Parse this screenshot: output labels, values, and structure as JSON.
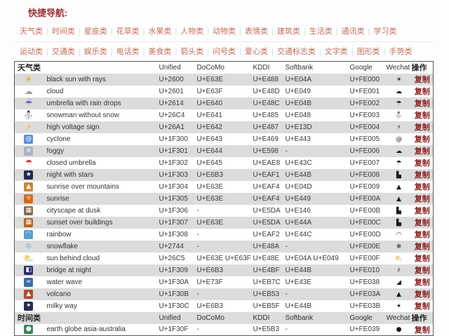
{
  "page": {
    "quick_nav_label": "快捷导航:"
  },
  "nav": {
    "row1": [
      "天气类",
      "时间类",
      "星座类",
      "花草类",
      "水果类",
      "人物类",
      "动物类",
      "表情类",
      "建筑类",
      "生活类",
      "通讯类",
      "学习类"
    ],
    "row2": [
      "运动类",
      "交通类",
      "娱乐类",
      "电话类",
      "美食类",
      "箭头类",
      "问号类",
      "爱心类",
      "交通标志类",
      "文字类",
      "图形类",
      "手势类"
    ]
  },
  "table": {
    "columns": [
      "Unified",
      "DoCoMo",
      "KDDI",
      "Softbank",
      "Google",
      "Wechat"
    ],
    "action_column": "操作",
    "copy_label": "复制",
    "sections": [
      {
        "category": "天气类",
        "rows": [
          {
            "icon": "☀",
            "icon_name": "sun-icon",
            "tile": false,
            "color": "#f0a400",
            "name": "black sun with rays",
            "unified": "U+2600",
            "docomo": "U+E63E",
            "kddi": "U+E488",
            "softbank": "U+E04A",
            "google": "U+FE000",
            "wechat": "☀"
          },
          {
            "icon": "☁",
            "icon_name": "cloud-icon",
            "tile": false,
            "color": "#9aa4ad",
            "name": "cloud",
            "unified": "U+2601",
            "docomo": "U+E63F",
            "kddi": "U+E48D",
            "softbank": "U+E049",
            "google": "U+FE001",
            "wechat": "☁"
          },
          {
            "icon": "☔",
            "icon_name": "umbrella-rain-icon",
            "tile": false,
            "color": "#6a5acd",
            "name": "umbrella with rain drops",
            "unified": "U+2614",
            "docomo": "U+E640",
            "kddi": "U+E48C",
            "softbank": "U+E04B",
            "google": "U+FE002",
            "wechat": "☂"
          },
          {
            "icon": "⛄",
            "icon_name": "snowman-icon",
            "tile": false,
            "color": "#8d9aa5",
            "name": "snowman without snow",
            "unified": "U+26C4",
            "docomo": "U+E641",
            "kddi": "U+E485",
            "softbank": "U+E048",
            "google": "U+FE003",
            "wechat": "⛄"
          },
          {
            "icon": "⚡",
            "icon_name": "lightning-icon",
            "tile": false,
            "color": "#f2c011",
            "name": "high voltage sign",
            "unified": "U+26A1",
            "docomo": "U+E642",
            "kddi": "U+E487",
            "softbank": "U+E13D",
            "google": "U+FE004",
            "wechat": "⚡"
          },
          {
            "icon": "@",
            "icon_name": "cyclone-icon",
            "tile": true,
            "color": "#5b8dd9",
            "name": "cyclone",
            "unified": "U+1F300",
            "docomo": "U+E643",
            "kddi": "U+E469",
            "softbank": "U+E443",
            "google": "U+FE005",
            "wechat": "@"
          },
          {
            "icon": "≡",
            "icon_name": "foggy-icon",
            "tile": true,
            "color": "#aab3bc",
            "name": "foggy",
            "unified": "U+1F301",
            "docomo": "U+E644",
            "kddi": "U+E598",
            "softbank": "-",
            "google": "U+FE006",
            "wechat": "☁"
          },
          {
            "icon": "☂",
            "icon_name": "closed-umbrella-icon",
            "tile": false,
            "color": "#cf3f3f",
            "name": "closed umbrella",
            "unified": "U+1F302",
            "docomo": "U+E645",
            "kddi": "U+EAE8",
            "softbank": "U+E43C",
            "google": "U+FE007",
            "wechat": "☂"
          },
          {
            "icon": "★",
            "icon_name": "night-stars-icon",
            "tile": true,
            "color": "#1d2c4e",
            "name": "night with stars",
            "unified": "U+1F303",
            "docomo": "U+E6B3",
            "kddi": "U+EAF1",
            "softbank": "U+E44B",
            "google": "U+FE008",
            "wechat": "▙"
          },
          {
            "icon": "▲",
            "icon_name": "sunrise-mountains-icon",
            "tile": true,
            "color": "#c7873a",
            "name": "sunrise over mountains",
            "unified": "U+1F304",
            "docomo": "U+E63E",
            "kddi": "U+EAF4",
            "softbank": "U+E04D",
            "google": "U+FE009",
            "wechat": "▲"
          },
          {
            "icon": "☼",
            "icon_name": "sunrise-icon",
            "tile": true,
            "color": "#d2691e",
            "name": "sunrise",
            "unified": "U+1F305",
            "docomo": "U+E63E",
            "kddi": "U+EAF4",
            "softbank": "U+E449",
            "google": "U+FE00A",
            "wechat": "▲"
          },
          {
            "icon": "▦",
            "icon_name": "cityscape-dusk-icon",
            "tile": true,
            "color": "#8a6a4a",
            "name": "cityscape at dusk",
            "unified": "U+1F306",
            "docomo": "-",
            "kddi": "U+E5DA",
            "softbank": "U+E146",
            "google": "U+FE00B",
            "wechat": "▙"
          },
          {
            "icon": "▦",
            "icon_name": "sunset-buildings-icon",
            "tile": true,
            "color": "#b5651d",
            "name": "sunset over buildings",
            "unified": "U+1F307",
            "docomo": "U+E63E",
            "kddi": "U+E5DA",
            "softbank": "U+E44A",
            "google": "U+FE00C",
            "wechat": "▙"
          },
          {
            "icon": "◠",
            "icon_name": "rainbow-icon",
            "tile": true,
            "color": "#58a0cf",
            "name": "rainbow",
            "unified": "U+1F308",
            "docomo": "-",
            "kddi": "U+EAF2",
            "softbank": "U+E44C",
            "google": "U+FE00D",
            "wechat": "◠"
          },
          {
            "icon": "❄",
            "icon_name": "snowflake-icon",
            "tile": false,
            "color": "#9db9cf",
            "name": "snowflake",
            "unified": "U+2744",
            "docomo": "-",
            "kddi": "U+E48A",
            "softbank": "-",
            "google": "U+FE00E",
            "wechat": "❄"
          },
          {
            "icon": "⛅",
            "icon_name": "sun-behind-cloud-icon",
            "tile": false,
            "color": "#d9a62e",
            "name": "sun behind cloud",
            "unified": "U+26C5",
            "docomo": "U+E63E U+E63F",
            "kddi": "U+E48E",
            "softbank": "U+E04A U+E049",
            "google": "U+FE00F",
            "wechat": "⛅"
          },
          {
            "icon": "◧",
            "icon_name": "bridge-night-icon",
            "tile": true,
            "color": "#2c2c66",
            "name": "bridge at night",
            "unified": "U+1F309",
            "docomo": "U+E6B3",
            "kddi": "U+E4BF",
            "softbank": "U+E44B",
            "google": "U+FE010",
            "wechat": "♯"
          },
          {
            "icon": "≈",
            "icon_name": "water-wave-icon",
            "tile": true,
            "color": "#3a6ea5",
            "name": "water wave",
            "unified": "U+1F30A",
            "docomo": "U+E73F",
            "kddi": "U+EB7C",
            "softbank": "U+E43E",
            "google": "U+FE038",
            "wechat": "◢"
          },
          {
            "icon": "▲",
            "icon_name": "volcano-icon",
            "tile": true,
            "color": "#b04a2a",
            "name": "volcano",
            "unified": "U+1F30B",
            "docomo": "-",
            "kddi": "U+EB53",
            "softbank": "-",
            "google": "U+FE03A",
            "wechat": "▲"
          },
          {
            "icon": "✦",
            "icon_name": "milky-way-icon",
            "tile": true,
            "color": "#2a2a52",
            "name": "milky way",
            "unified": "U+1F30C",
            "docomo": "U+E6B3",
            "kddi": "U+EB5F",
            "softbank": "U+E44B",
            "google": "U+FE03B",
            "wechat": "✦"
          }
        ]
      },
      {
        "category": "时间类",
        "rows": [
          {
            "icon": "●",
            "icon_name": "earth-globe-icon",
            "tile": true,
            "color": "#3a8a5a",
            "name": "earth globe asia-australia",
            "unified": "U+1F30F",
            "docomo": "-",
            "kddi": "U+E5B3",
            "softbank": "-",
            "google": "U+FE039",
            "wechat": "●"
          }
        ]
      }
    ]
  }
}
